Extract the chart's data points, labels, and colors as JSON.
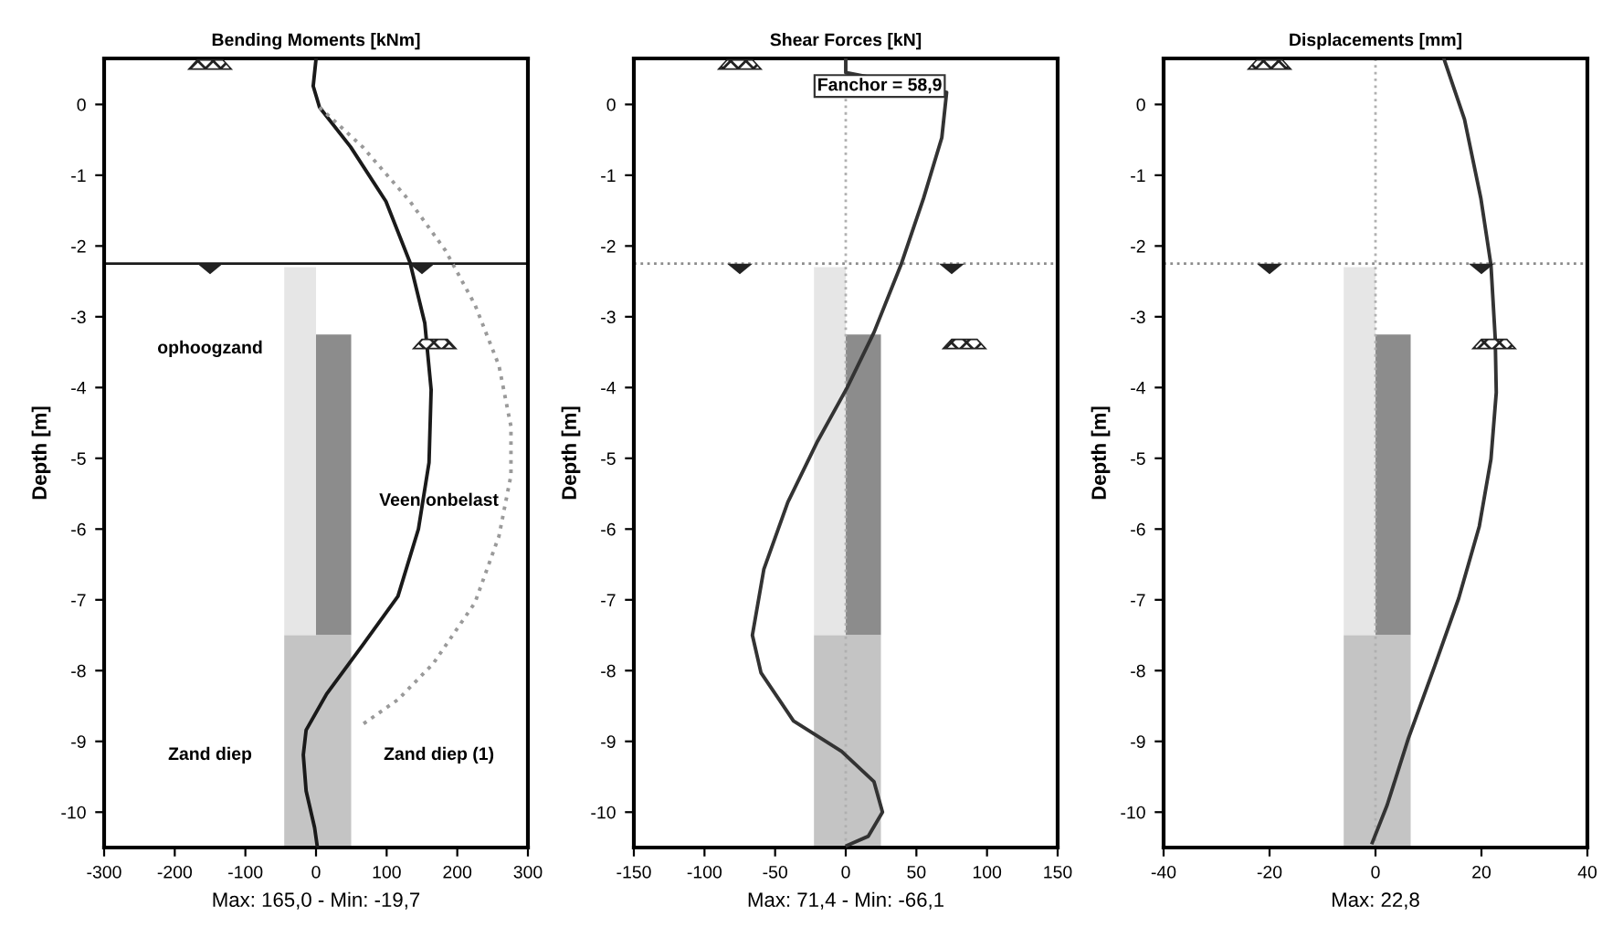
{
  "chart_data": [
    {
      "type": "line",
      "title": "Bending Moments [kNm]",
      "xlabel": "Max: 165,0 - Min: -19,7",
      "ylabel": "Depth [m]",
      "xlim": [
        -300,
        300
      ],
      "xticks": [
        -300,
        -200,
        -100,
        0,
        100,
        200,
        300
      ],
      "ylim": [
        -10.5,
        0.65
      ],
      "yticks": [
        0,
        -1,
        -2,
        -3,
        -4,
        -5,
        -6,
        -7,
        -8,
        -9,
        -10
      ],
      "grid": false,
      "series": [
        {
          "color": "#1a1a1a",
          "line_style": "solid",
          "x": [
            0,
            -4,
            5,
            49,
            99,
            133,
            154,
            163,
            160,
            145,
            116,
            66,
            15,
            -14,
            -18,
            -14,
            -2,
            2
          ],
          "values": [
            0.64,
            0.26,
            -0.04,
            -0.6,
            -1.37,
            -2.23,
            -3.09,
            -4.03,
            -5.06,
            -6.0,
            -6.95,
            -7.64,
            -8.33,
            -8.84,
            -9.19,
            -9.7,
            -10.22,
            -10.5
          ]
        },
        {
          "color": "#9a9a9a",
          "line_style": "dotted",
          "x": [
            5,
            66,
            133,
            183,
            225,
            259,
            276,
            276,
            259,
            225,
            166,
            116,
            66
          ],
          "values": [
            -0.04,
            -0.6,
            -1.37,
            -2.06,
            -2.83,
            -3.69,
            -4.55,
            -5.24,
            -6.1,
            -7.04,
            -7.9,
            -8.41,
            -8.76
          ]
        }
      ],
      "ref_lines": [
        {
          "axis": "y",
          "value": -2.25,
          "color": "#1a1a1a",
          "line_style": "solid"
        }
      ],
      "annotations": [
        "ophoogzand",
        "Veen onbelast",
        "Zand diep",
        "Zand diep (1)"
      ]
    },
    {
      "type": "line",
      "title": "Shear Forces [kN]",
      "xlabel": "Max: 71,4 - Min: -66,1",
      "ylabel": "Depth [m]",
      "xlim": [
        -150,
        150
      ],
      "xticks": [
        -150,
        -100,
        -50,
        0,
        50,
        100,
        150
      ],
      "ylim": [
        -10.5,
        0.65
      ],
      "yticks": [
        0,
        -1,
        -2,
        -3,
        -4,
        -5,
        -6,
        -7,
        -8,
        -9,
        -10
      ],
      "grid": false,
      "series": [
        {
          "color": "#333333",
          "line_style": "solid",
          "x": [
            0,
            0,
            71.4,
            68,
            55,
            39,
            20,
            1,
            -20,
            -41,
            -58,
            -66.1,
            -60,
            -37,
            -3,
            20,
            26,
            16,
            1
          ],
          "values": [
            0.64,
            0.45,
            0.17,
            -0.47,
            -1.33,
            -2.27,
            -3.22,
            -4.0,
            -4.76,
            -5.62,
            -6.57,
            -7.5,
            -8.03,
            -8.71,
            -9.14,
            -9.57,
            -10.0,
            -10.34,
            -10.47
          ]
        }
      ],
      "ref_lines": [
        {
          "axis": "y",
          "value": -2.25,
          "color": "#8a8a8a",
          "line_style": "dotted"
        },
        {
          "axis": "x",
          "value": 0,
          "color": "#b0b0b0",
          "line_style": "dotted"
        }
      ],
      "annotations": [
        {
          "text": "Fanchor = 58,9",
          "x": 24,
          "y": 0.26
        }
      ]
    },
    {
      "type": "line",
      "title": "Displacements [mm]",
      "xlabel": "Max: 22,8",
      "ylabel": "Depth [m]",
      "xlim": [
        -40,
        40
      ],
      "xticks": [
        -40,
        -20,
        0,
        20,
        40
      ],
      "ylim": [
        -10.5,
        0.65
      ],
      "yticks": [
        0,
        -1,
        -2,
        -3,
        -4,
        -5,
        -6,
        -7,
        -8,
        -9,
        -10
      ],
      "grid": false,
      "series": [
        {
          "color": "#333333",
          "line_style": "solid",
          "x": [
            12.9,
            16.8,
            19.9,
            21.8,
            22.6,
            22.8,
            21.8,
            19.6,
            15.7,
            11.2,
            6.2,
            2.2,
            -0.6
          ],
          "values": [
            0.65,
            -0.21,
            -1.33,
            -2.27,
            -3.3,
            -4.07,
            -5.01,
            -5.96,
            -6.98,
            -7.93,
            -8.96,
            -9.9,
            -10.43
          ]
        }
      ],
      "ref_lines": [
        {
          "axis": "y",
          "value": -2.25,
          "color": "#8a8a8a",
          "line_style": "dotted"
        },
        {
          "axis": "x",
          "value": 0,
          "color": "#b0b0b0",
          "line_style": "dotted"
        }
      ]
    }
  ]
}
